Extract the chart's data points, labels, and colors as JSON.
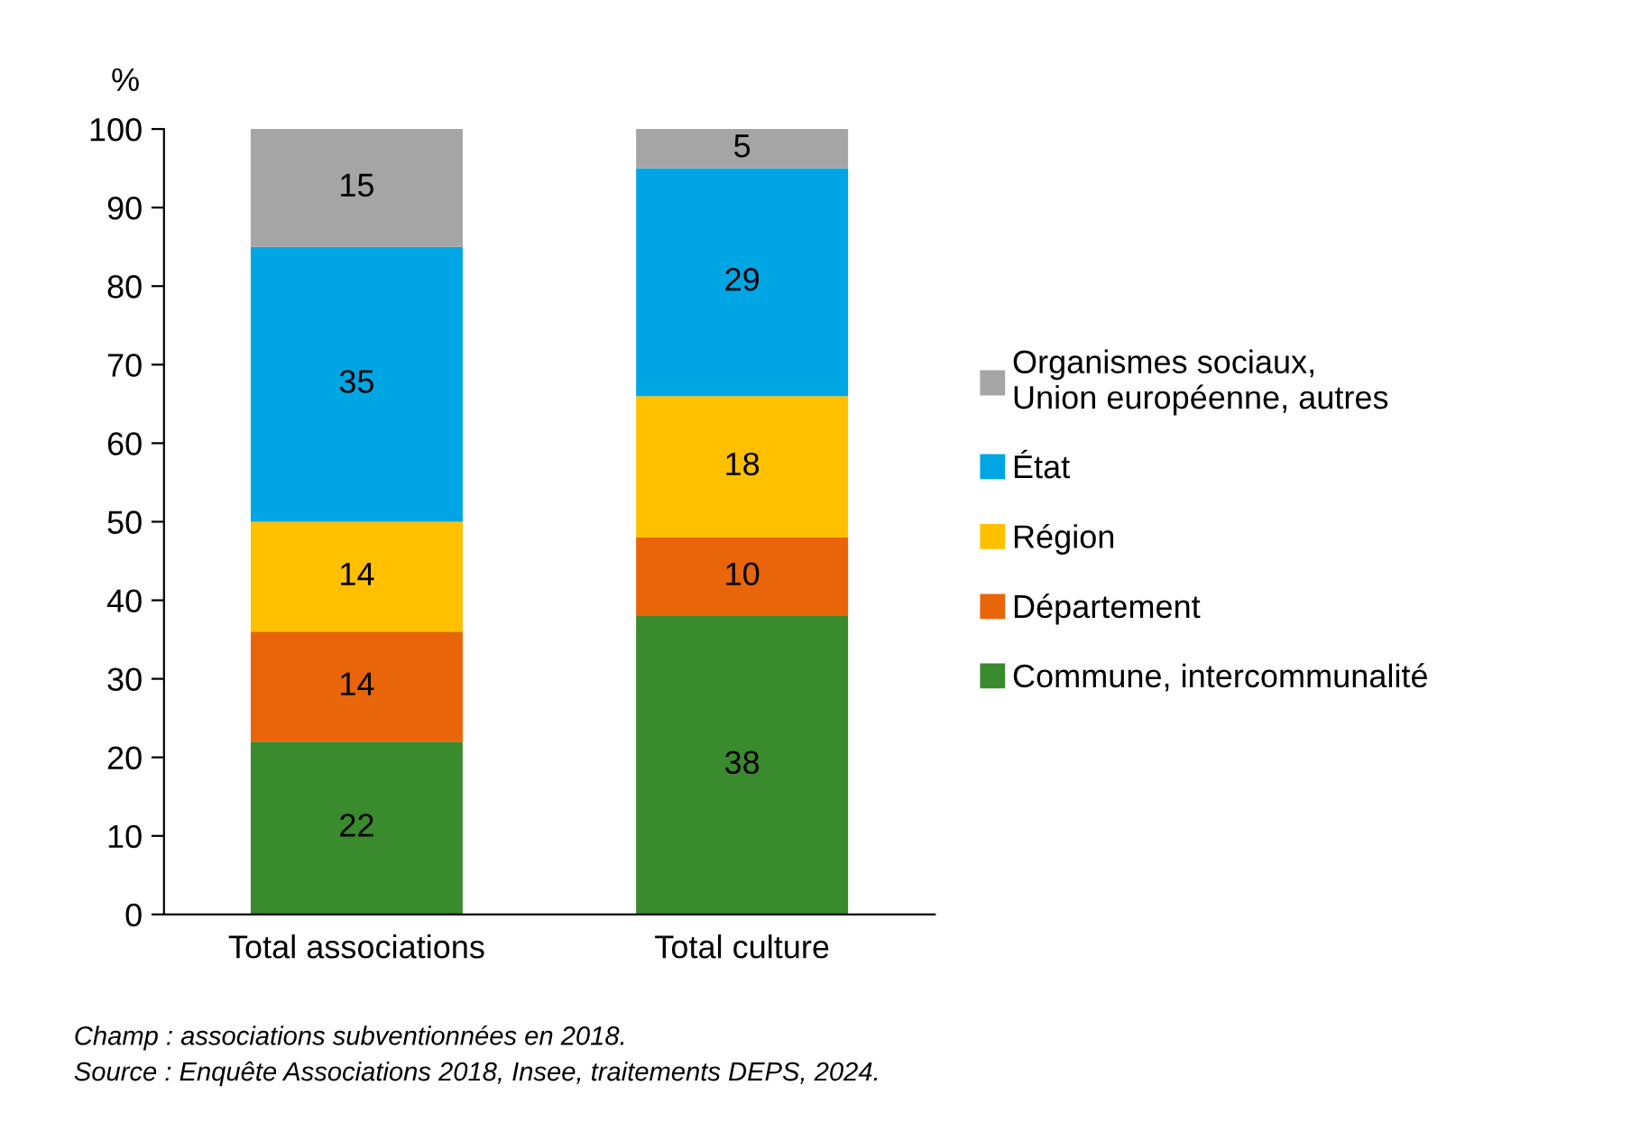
{
  "chart_data": {
    "type": "bar",
    "stacked": true,
    "ylabel": "%",
    "categories": [
      "Total associations",
      "Total culture"
    ],
    "series": [
      {
        "name": "Commune, intercommunalité",
        "color": "#3a8a2e",
        "values": [
          22,
          38
        ]
      },
      {
        "name": "Département",
        "color": "#e8650a",
        "values": [
          14,
          10
        ]
      },
      {
        "name": "Région",
        "color": "#ffc000",
        "values": [
          14,
          18
        ]
      },
      {
        "name": "État",
        "color": "#00a6e3",
        "values": [
          35,
          29
        ]
      },
      {
        "name": "Organismes sociaux,\nUnion européenne, autres",
        "color": "#a5a5a5",
        "values": [
          15,
          5
        ]
      }
    ],
    "ylim": [
      0,
      100
    ],
    "yticks": [
      0,
      10,
      20,
      30,
      40,
      50,
      60,
      70,
      80,
      90,
      100
    ],
    "data_labels": true,
    "grid": false,
    "legend": "right",
    "annotations": [
      "Champ : associations subventionnées en 2018.",
      "Source : Enquête Associations 2018, Insee, traitements DEPS, 2024."
    ]
  }
}
